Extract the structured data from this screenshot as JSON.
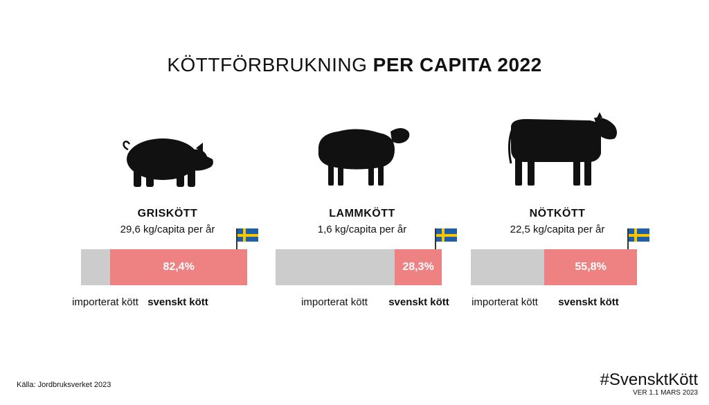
{
  "title_light": "KÖTTFÖRBRUKNING",
  "title_bold": "PER CAPITA 2022",
  "legend": {
    "imported": "importerat kött",
    "swedish": "svenskt kött"
  },
  "source": "Källa: Jordbruksverket 2023",
  "hashtag": "#SvensktKött",
  "version": "VER 1.1 MARS 2023",
  "colors": {
    "imported": "#cccccc",
    "swedish": "#ee8283",
    "flag_blue": "#1f5fa8",
    "flag_yellow": "#f7c600"
  },
  "icons": [
    "pig-icon",
    "sheep-icon",
    "cow-icon",
    "swedish-flag-icon"
  ],
  "chart_data": {
    "type": "bar",
    "stacked": true,
    "title": "KÖTTFÖRBRUKNING PER CAPITA 2022",
    "categories": [
      "GRISKÖTT",
      "LAMMKÖTT",
      "NÖTKÖTT"
    ],
    "per_capita_labels": [
      "29,6 kg/capita per år",
      "1,6 kg/capita per år",
      "22,5 kg/capita per år"
    ],
    "per_capita_kg": [
      29.6,
      1.6,
      22.5
    ],
    "series": [
      {
        "name": "svenskt kött",
        "values": [
          82.4,
          28.3,
          55.8
        ],
        "labels": [
          "82,4%",
          "28,3%",
          "55,8%"
        ]
      },
      {
        "name": "importerat kött",
        "values": [
          17.6,
          71.7,
          44.2
        ]
      }
    ],
    "ylim": [
      0,
      100
    ]
  }
}
